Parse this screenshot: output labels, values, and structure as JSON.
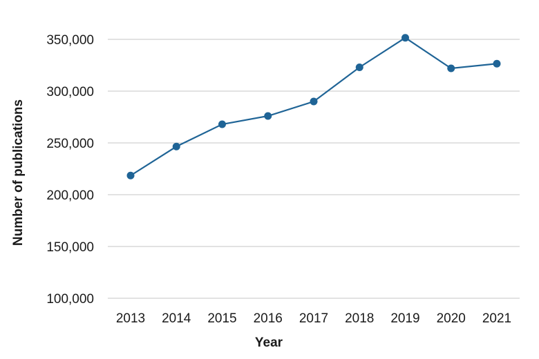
{
  "chart_data": {
    "type": "line",
    "xlabel": "Year",
    "ylabel": "Number of publications",
    "x": [
      "2013",
      "2014",
      "2015",
      "2016",
      "2017",
      "2018",
      "2019",
      "2020",
      "2021"
    ],
    "series": [
      {
        "values": [
          218500,
          246500,
          268000,
          276000,
          290000,
          323000,
          351500,
          322000,
          326500
        ]
      }
    ],
    "ylim": [
      100000,
      350000
    ],
    "yticks": [
      "100,000",
      "150,000",
      "200,000",
      "250,000",
      "300,000",
      "350,000"
    ],
    "ytick_values": [
      100000,
      150000,
      200000,
      250000,
      300000,
      350000
    ],
    "grid": true,
    "legend": "none",
    "colors": {
      "series": "#1f6496",
      "grid": "#c4c4c4",
      "text": "#1a1a1a"
    }
  }
}
